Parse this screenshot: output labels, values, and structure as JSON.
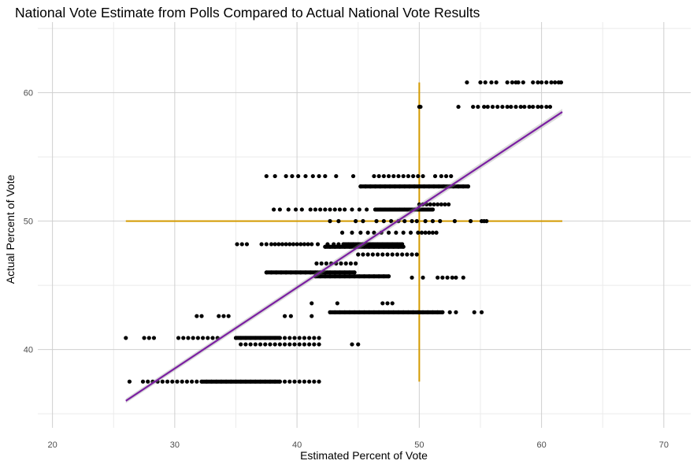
{
  "chart_data": {
    "type": "scatter",
    "title": "National Vote Estimate from Polls Compared to Actual National Vote Results",
    "xlabel": "Estimated Percent of Vote",
    "ylabel": "Actual Percent of Vote",
    "xlim": [
      18.8,
      72.2
    ],
    "ylim": [
      33.9,
      65.5
    ],
    "x_ticks": [
      20,
      30,
      40,
      50,
      60,
      70
    ],
    "y_ticks": [
      40,
      50,
      60
    ],
    "grid": true,
    "fit_line": {
      "x": [
        26,
        61.7
      ],
      "y": [
        36.0,
        58.5
      ],
      "color": "#7b1fa2"
    },
    "reference_lines": {
      "color": "#d39a00",
      "horizontal": {
        "y": 50,
        "x_from": 26,
        "x_to": 61.7
      },
      "vertical": {
        "x": 50,
        "y_from": 37.5,
        "y_to": 60.8
      }
    },
    "point_groups": [
      {
        "y": 60.8,
        "x": [
          53.9,
          55.0,
          55.4,
          55.9,
          56.3,
          57.2,
          57.6,
          57.9,
          58.1,
          58.5,
          59.3,
          59.7,
          60.0,
          60.4,
          60.8,
          61.1,
          61.4,
          61.6
        ]
      },
      {
        "y": 58.9,
        "x": [
          50.0,
          50.1,
          53.2,
          54.4,
          54.8,
          55.3,
          55.6,
          56.0,
          56.4,
          56.8,
          57.2,
          57.5,
          57.9,
          58.3,
          58.6,
          59.0,
          59.3,
          59.7,
          60.0,
          60.4,
          60.7
        ]
      },
      {
        "y": 53.5,
        "x": [
          37.5,
          38.2,
          39.1,
          39.6,
          40.1,
          40.7,
          41.3,
          41.8,
          42.3,
          43.2,
          44.6,
          46.3,
          46.7,
          47.1,
          47.5,
          47.9,
          48.3,
          48.7,
          49.1,
          49.5,
          49.9,
          50.3,
          51.3,
          51.8,
          52.2,
          52.6
        ]
      },
      {
        "y": 52.7,
        "x": [
          45.2,
          45.6,
          46.0,
          46.4,
          46.8,
          47.2,
          47.6,
          48.0,
          48.4,
          48.8,
          49.2,
          49.6,
          50.0,
          50.4,
          50.8,
          51.2,
          51.6,
          52.0,
          52.4,
          52.8,
          53.2,
          53.6,
          54.0
        ]
      },
      {
        "y": 51.3,
        "x": [
          50.0,
          50.3,
          50.6,
          50.9,
          51.2,
          51.5,
          51.8,
          52.1,
          52.4
        ]
      },
      {
        "y": 50.9,
        "x": [
          38.1,
          38.6,
          39.3,
          39.9,
          40.4,
          41.1,
          41.5,
          41.9,
          42.3,
          42.7,
          43.1,
          43.5,
          43.9,
          44.5,
          45.1,
          45.7,
          46.4,
          46.8,
          47.2,
          47.6,
          48.0,
          48.4,
          48.8,
          49.2,
          49.6,
          50.0,
          50.3,
          50.7,
          51.1
        ]
      },
      {
        "y": 50.0,
        "x": [
          42.7,
          43.4,
          44.8,
          45.4,
          46.5,
          47.1,
          47.7,
          48.3,
          48.8,
          49.4,
          49.8,
          50.5,
          51.1,
          51.7,
          52.9,
          54.2,
          55.1,
          55.3,
          55.5
        ]
      },
      {
        "y": 49.1,
        "x": [
          43.7,
          44.5,
          45.2,
          45.8,
          46.3,
          46.9,
          47.5,
          48.1,
          48.7,
          49.3,
          49.9,
          50.2,
          50.5,
          50.8,
          51.1,
          51.4
        ]
      },
      {
        "y": 48.2,
        "x": [
          35.1,
          35.5,
          35.9,
          37.1,
          37.5,
          37.9,
          38.2,
          38.5,
          38.8,
          39.1,
          39.4,
          39.7,
          40.0,
          40.3,
          40.6,
          40.9,
          41.2,
          41.7,
          42.5,
          43.0,
          43.4,
          43.8,
          44.2,
          44.6,
          45.0,
          45.4,
          45.8,
          46.2,
          46.6,
          47.0,
          47.4,
          47.8,
          48.2,
          48.6
        ]
      },
      {
        "y": 48.0,
        "x": [
          42.3,
          42.7,
          43.1,
          43.5,
          43.9,
          44.3,
          44.7,
          45.1,
          45.5,
          45.9,
          46.3,
          46.7,
          47.1,
          47.5,
          47.9,
          48.3,
          48.7
        ]
      },
      {
        "y": 47.4,
        "x": [
          45.0,
          45.4,
          45.8,
          46.2,
          46.6,
          47.0,
          47.4,
          47.8,
          48.2,
          48.6,
          49.0,
          49.4,
          49.8
        ]
      },
      {
        "y": 46.7,
        "x": [
          41.6,
          42.0,
          42.4,
          42.8,
          43.2,
          43.6,
          44.0,
          44.4,
          44.8
        ]
      },
      {
        "y": 46.0,
        "x": [
          37.5,
          37.9,
          38.3,
          38.7,
          39.1,
          39.5,
          39.9,
          40.3,
          40.7,
          41.1,
          41.5,
          41.9,
          42.3,
          42.7,
          43.1,
          43.5,
          43.9,
          44.3,
          44.7
        ]
      },
      {
        "y": 45.7,
        "x": [
          41.5,
          41.9,
          42.3,
          42.7,
          43.1,
          43.5,
          43.9,
          44.3,
          44.7,
          45.1,
          45.5,
          45.9,
          46.3,
          46.7,
          47.1,
          47.5
        ]
      },
      {
        "y": 45.6,
        "x": [
          49.4,
          50.3,
          51.5,
          51.9,
          52.3,
          52.7,
          53.0,
          53.6
        ]
      },
      {
        "y": 43.6,
        "x": [
          41.2,
          43.3,
          47.0,
          47.4,
          47.8
        ]
      },
      {
        "y": 42.9,
        "x": [
          42.7,
          43.1,
          43.5,
          43.9,
          44.3,
          44.7,
          45.1,
          45.5,
          45.9,
          46.3,
          46.7,
          47.1,
          47.5,
          47.9,
          48.3,
          48.7,
          49.1,
          49.5,
          49.9,
          50.3,
          50.7,
          51.1,
          51.5,
          51.9,
          52.5,
          53.0,
          54.5,
          55.1
        ]
      },
      {
        "y": 42.6,
        "x": [
          31.8,
          32.2,
          33.6,
          34.0,
          34.4,
          39.0,
          39.5,
          41.2
        ]
      },
      {
        "y": 40.9,
        "x": [
          26.0,
          27.5,
          27.9,
          28.3,
          30.3,
          30.7,
          31.1,
          31.5,
          31.9,
          32.3,
          32.7,
          33.1,
          33.5,
          35.0,
          35.4,
          35.8,
          36.2,
          36.6,
          37.0,
          37.4,
          37.8,
          38.2,
          38.6,
          39.0,
          39.4,
          39.8,
          40.2,
          40.6,
          41.0,
          41.4,
          41.8
        ]
      },
      {
        "y": 40.4,
        "x": [
          35.4,
          35.8,
          36.2,
          36.6,
          37.0,
          37.4,
          37.8,
          38.2,
          38.6,
          39.0,
          39.4,
          39.8,
          40.2,
          40.6,
          41.0,
          41.4,
          41.8,
          44.5,
          45.0
        ]
      },
      {
        "y": 37.5,
        "x": [
          26.3,
          27.4,
          27.8,
          28.2,
          28.6,
          29.0,
          29.4,
          29.8,
          30.2,
          30.6,
          31.0,
          31.4,
          31.8,
          32.2,
          32.6,
          33.0,
          33.4,
          33.8,
          34.2,
          34.6,
          35.0,
          35.4,
          35.8,
          36.2,
          36.6,
          37.0,
          37.4,
          37.8,
          38.2,
          38.6,
          39.0,
          39.4,
          39.8,
          40.2,
          40.6,
          41.0,
          41.4,
          41.8
        ]
      }
    ],
    "bands": [
      {
        "y": 52.7,
        "x_from": 45.2,
        "x_to": 54.0
      },
      {
        "y": 50.9,
        "x_from": 46.4,
        "x_to": 51.1
      },
      {
        "y": 48.2,
        "x_from": 43.8,
        "x_to": 48.6
      },
      {
        "y": 48.0,
        "x_from": 42.3,
        "x_to": 48.7
      },
      {
        "y": 46.0,
        "x_from": 37.5,
        "x_to": 44.7
      },
      {
        "y": 45.7,
        "x_from": 41.5,
        "x_to": 47.5
      },
      {
        "y": 42.9,
        "x_from": 42.7,
        "x_to": 51.9
      },
      {
        "y": 40.9,
        "x_from": 35.0,
        "x_to": 38.6
      },
      {
        "y": 37.5,
        "x_from": 32.2,
        "x_to": 38.6
      }
    ]
  }
}
